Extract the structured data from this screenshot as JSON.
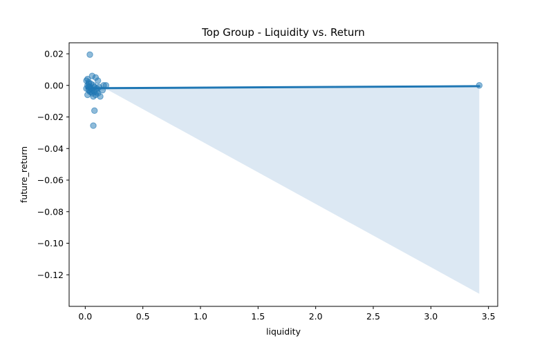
{
  "chart_data": {
    "type": "scatter",
    "title": "Top Group - Liquidity vs. Return",
    "xlabel": "liquidity",
    "ylabel": "future_return",
    "xlim": [
      -0.14,
      3.58
    ],
    "ylim": [
      -0.14,
      0.027
    ],
    "xticks": [
      0.0,
      0.5,
      1.0,
      1.5,
      2.0,
      2.5,
      3.0,
      3.5
    ],
    "xtick_labels": [
      "0.0",
      "0.5",
      "1.0",
      "1.5",
      "2.0",
      "2.5",
      "3.0",
      "3.5"
    ],
    "yticks": [
      0.02,
      0.0,
      -0.02,
      -0.04,
      -0.06,
      -0.08,
      -0.1,
      -0.12
    ],
    "ytick_labels": [
      "0.02",
      "0.00",
      "−0.02",
      "−0.04",
      "−0.06",
      "−0.08",
      "−0.10",
      "−0.12"
    ],
    "grid": false,
    "point_color": "#1f77b4",
    "band_color": "#dce8f3",
    "points": [
      {
        "x": 0.04,
        "y": 0.0195
      },
      {
        "x": 0.02,
        "y": 0.004
      },
      {
        "x": 0.06,
        "y": 0.006
      },
      {
        "x": 0.09,
        "y": 0.005
      },
      {
        "x": 0.01,
        "y": 0.003
      },
      {
        "x": 0.03,
        "y": 0.002
      },
      {
        "x": 0.05,
        "y": 0.001
      },
      {
        "x": 0.11,
        "y": 0.003
      },
      {
        "x": 0.02,
        "y": 0.0
      },
      {
        "x": 0.04,
        "y": -0.001
      },
      {
        "x": 0.07,
        "y": 0.0
      },
      {
        "x": 0.01,
        "y": -0.002
      },
      {
        "x": 0.03,
        "y": -0.003
      },
      {
        "x": 0.05,
        "y": -0.002
      },
      {
        "x": 0.08,
        "y": -0.001
      },
      {
        "x": 0.1,
        "y": -0.002
      },
      {
        "x": 0.12,
        "y": -0.001
      },
      {
        "x": 0.15,
        "y": -0.003
      },
      {
        "x": 0.16,
        "y": 0.0
      },
      {
        "x": 0.18,
        "y": 0.0
      },
      {
        "x": 0.02,
        "y": -0.006
      },
      {
        "x": 0.04,
        "y": -0.004
      },
      {
        "x": 0.06,
        "y": -0.005
      },
      {
        "x": 0.07,
        "y": -0.007
      },
      {
        "x": 0.09,
        "y": -0.006
      },
      {
        "x": 0.11,
        "y": -0.005
      },
      {
        "x": 0.13,
        "y": -0.007
      },
      {
        "x": 0.08,
        "y": -0.016
      },
      {
        "x": 0.07,
        "y": -0.0255
      },
      {
        "x": 0.03,
        "y": 0.001
      },
      {
        "x": 0.05,
        "y": -0.004
      },
      {
        "x": 0.1,
        "y": -0.004
      },
      {
        "x": 0.06,
        "y": -0.003
      },
      {
        "x": 0.08,
        "y": -0.004
      },
      {
        "x": 0.03,
        "y": -0.001
      },
      {
        "x": 3.42,
        "y": 0.0
      }
    ],
    "regression_line": {
      "x": [
        0.01,
        3.42
      ],
      "y": [
        -0.0018,
        -0.0005
      ]
    },
    "confidence_band": {
      "x": [
        0.01,
        0.2,
        3.42
      ],
      "upper": [
        0.0015,
        -0.001,
        -0.0005
      ],
      "lower": [
        -0.004,
        -0.003,
        -0.132
      ]
    }
  }
}
